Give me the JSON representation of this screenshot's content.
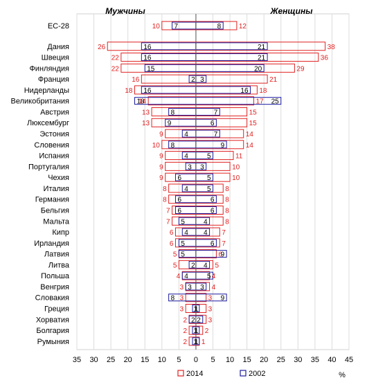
{
  "chart_data": {
    "type": "bar",
    "orientation": "horizontal",
    "layout": "population-pyramid",
    "headers": {
      "left": "Мужчины",
      "right": "Женщины"
    },
    "xlabel_unit": "%",
    "xlim": [
      -35,
      45
    ],
    "xticks": [
      -35,
      -30,
      -25,
      -20,
      -15,
      -10,
      -5,
      0,
      5,
      10,
      15,
      20,
      25,
      30,
      35,
      40,
      45
    ],
    "xtick_labels": [
      "35",
      "30",
      "25",
      "20",
      "15",
      "10",
      "5",
      "0",
      "5",
      "10",
      "15",
      "20",
      "25",
      "30",
      "35",
      "40",
      "45"
    ],
    "grid": true,
    "legend_position": "bottom-center",
    "categories": [
      "ЕС-28",
      "Дания",
      "Швеция",
      "Финляндия",
      "Франция",
      "Нидерланды",
      "Великобритания",
      "Австрия",
      "Люксембург",
      "Эстония",
      "Словения",
      "Испания",
      "Португалия",
      "Чехия",
      "Италия",
      "Германия",
      "Бельгия",
      "Мальта",
      "Кипр",
      "Ирландия",
      "Латвия",
      "Литва",
      "Польша",
      "Венгрия",
      "Словакия",
      "Греция",
      "Хорватия",
      "Болгария",
      "Румыния"
    ],
    "group_gap_after": [
      0
    ],
    "series": [
      {
        "name": "2014",
        "color": "#e02020",
        "men": [
          10,
          26,
          22,
          22,
          16,
          18,
          14,
          13,
          13,
          9,
          10,
          9,
          9,
          9,
          8,
          8,
          7,
          7,
          6,
          6,
          5,
          5,
          4,
          3,
          3,
          3,
          2,
          2,
          2
        ],
        "women": [
          12,
          38,
          36,
          29,
          21,
          18,
          17,
          15,
          15,
          14,
          14,
          11,
          10,
          10,
          8,
          8,
          8,
          8,
          7,
          7,
          6,
          5,
          4,
          4,
          3,
          3,
          3,
          2,
          1
        ]
      },
      {
        "name": "2002",
        "color": "#1a1aa0",
        "men": [
          7,
          16,
          16,
          15,
          2,
          16,
          18,
          8,
          9,
          4,
          8,
          4,
          3,
          6,
          4,
          6,
          6,
          5,
          4,
          5,
          5,
          2,
          4,
          3,
          8,
          1,
          2,
          1,
          1
        ],
        "women": [
          8,
          21,
          21,
          20,
          3,
          16,
          25,
          7,
          6,
          7,
          9,
          5,
          3,
          5,
          5,
          6,
          6,
          4,
          4,
          6,
          9,
          4,
          5,
          3,
          9,
          1,
          2,
          1,
          1
        ]
      }
    ],
    "data_labels_shown": {
      "2014": "outside-bar-ends",
      "2002": "inside-bar-ends"
    }
  }
}
